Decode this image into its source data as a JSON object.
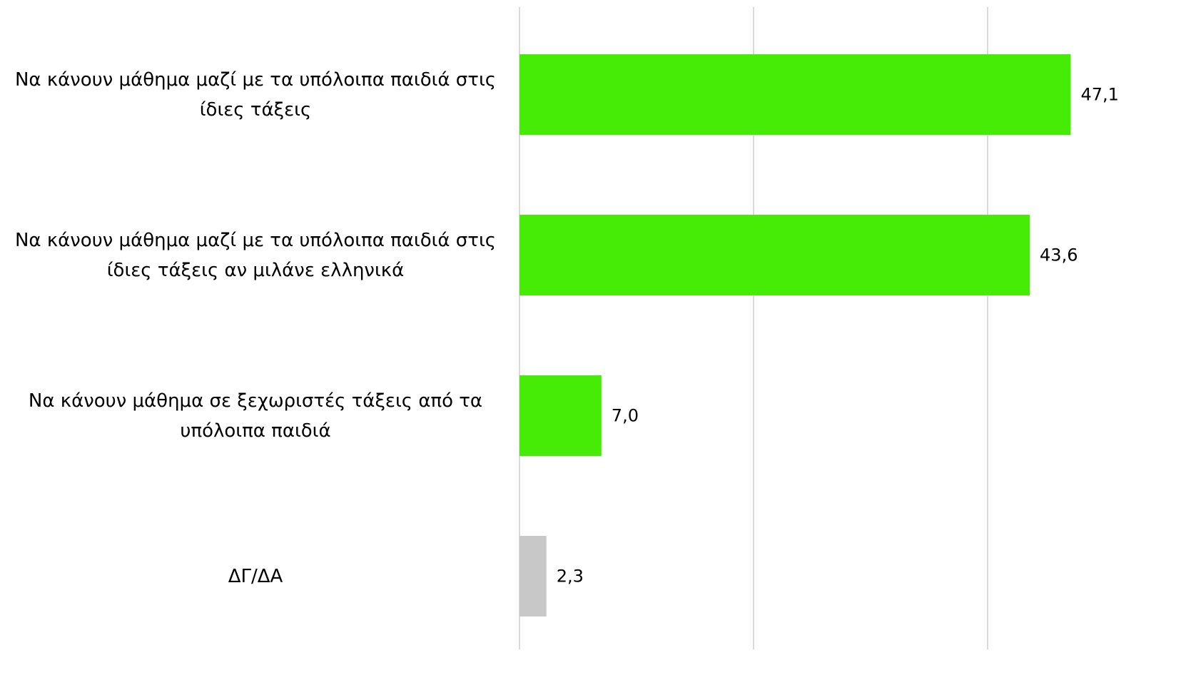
{
  "chart_data": {
    "type": "bar",
    "orientation": "horizontal",
    "categories": [
      "Να κάνουν μάθημα μαζί με τα υπόλοιπα παιδιά στις ίδιες τάξεις",
      "Να κάνουν μάθημα μαζί με τα υπόλοιπα παιδιά στις ίδιες τάξεις αν μιλάνε ελληνικά",
      "Να κάνουν μάθημα σε ξεχωριστές τάξεις από τα υπόλοιπα παιδιά",
      "ΔΓ/ΔΑ"
    ],
    "values": [
      47.1,
      43.6,
      7.0,
      2.3
    ],
    "value_labels": [
      "47,1",
      "43,6",
      "7,0",
      "2,3"
    ],
    "bar_colors": [
      "#46ec06",
      "#46ec06",
      "#46ec06",
      "#c8c8c8"
    ],
    "xlim": [
      0,
      50
    ],
    "gridlines_at": [
      0,
      20,
      40
    ],
    "grid": true,
    "gridline_color": "#d9d9d9",
    "title": "",
    "xlabel": "",
    "ylabel": ""
  }
}
